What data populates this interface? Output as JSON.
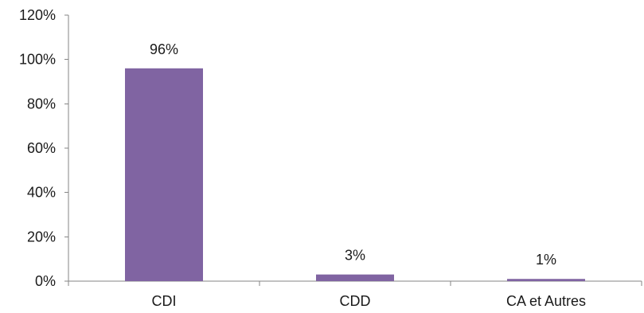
{
  "chart_data": {
    "type": "bar",
    "categories": [
      "CDI",
      "CDD",
      "CA et Autres"
    ],
    "values": [
      96,
      3,
      1
    ],
    "data_labels": [
      "96%",
      "3%",
      "1%"
    ],
    "title": "",
    "xlabel": "",
    "ylabel": "",
    "ylim": [
      0,
      120
    ],
    "yticks": [
      0,
      20,
      40,
      60,
      80,
      100,
      120
    ],
    "ytick_labels": [
      "0%",
      "20%",
      "40%",
      "60%",
      "80%",
      "100%",
      "120%"
    ],
    "grid": false,
    "legend": "none",
    "bar_color": "#8064a2"
  }
}
